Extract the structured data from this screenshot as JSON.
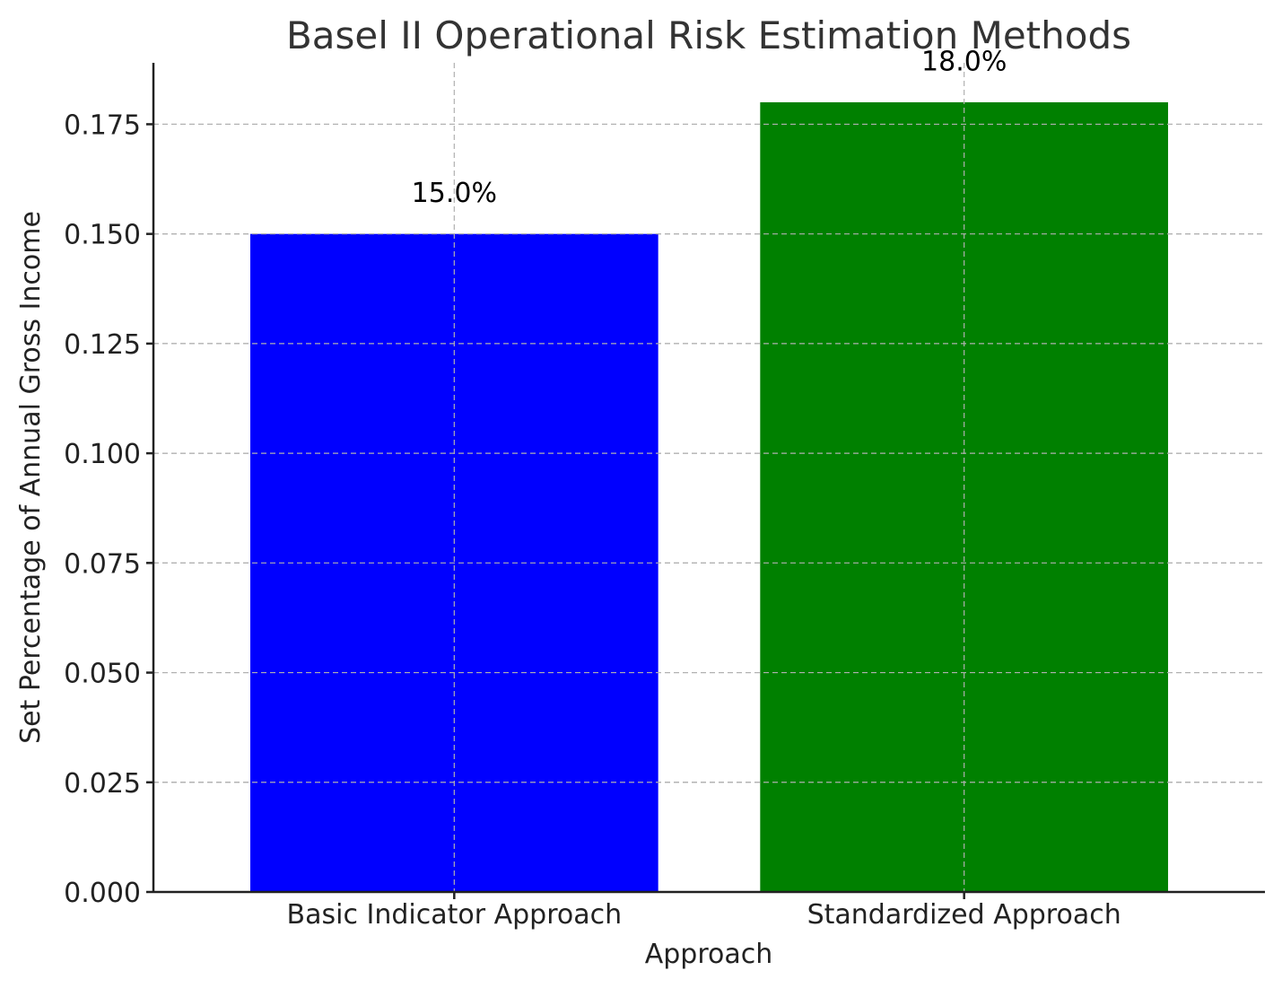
{
  "chart_data": {
    "type": "bar",
    "title": "Basel II Operational Risk Estimation Methods",
    "xlabel": "Approach",
    "ylabel": "Set Percentage of Annual Gross Income",
    "categories": [
      "Basic Indicator Approach",
      "Standardized Approach"
    ],
    "values": [
      0.15,
      0.18
    ],
    "data_labels": [
      "15.0%",
      "18.0%"
    ],
    "colors": [
      "#0000ff",
      "#008000"
    ],
    "ylim": [
      0,
      0.189
    ],
    "yticks": [
      0,
      0.025,
      0.05,
      0.075,
      0.1,
      0.125,
      0.15,
      0.175
    ],
    "ytick_labels": [
      "0.000",
      "0.025",
      "0.050",
      "0.075",
      "0.100",
      "0.125",
      "0.150",
      "0.175"
    ],
    "grid": true,
    "legend": "none"
  }
}
